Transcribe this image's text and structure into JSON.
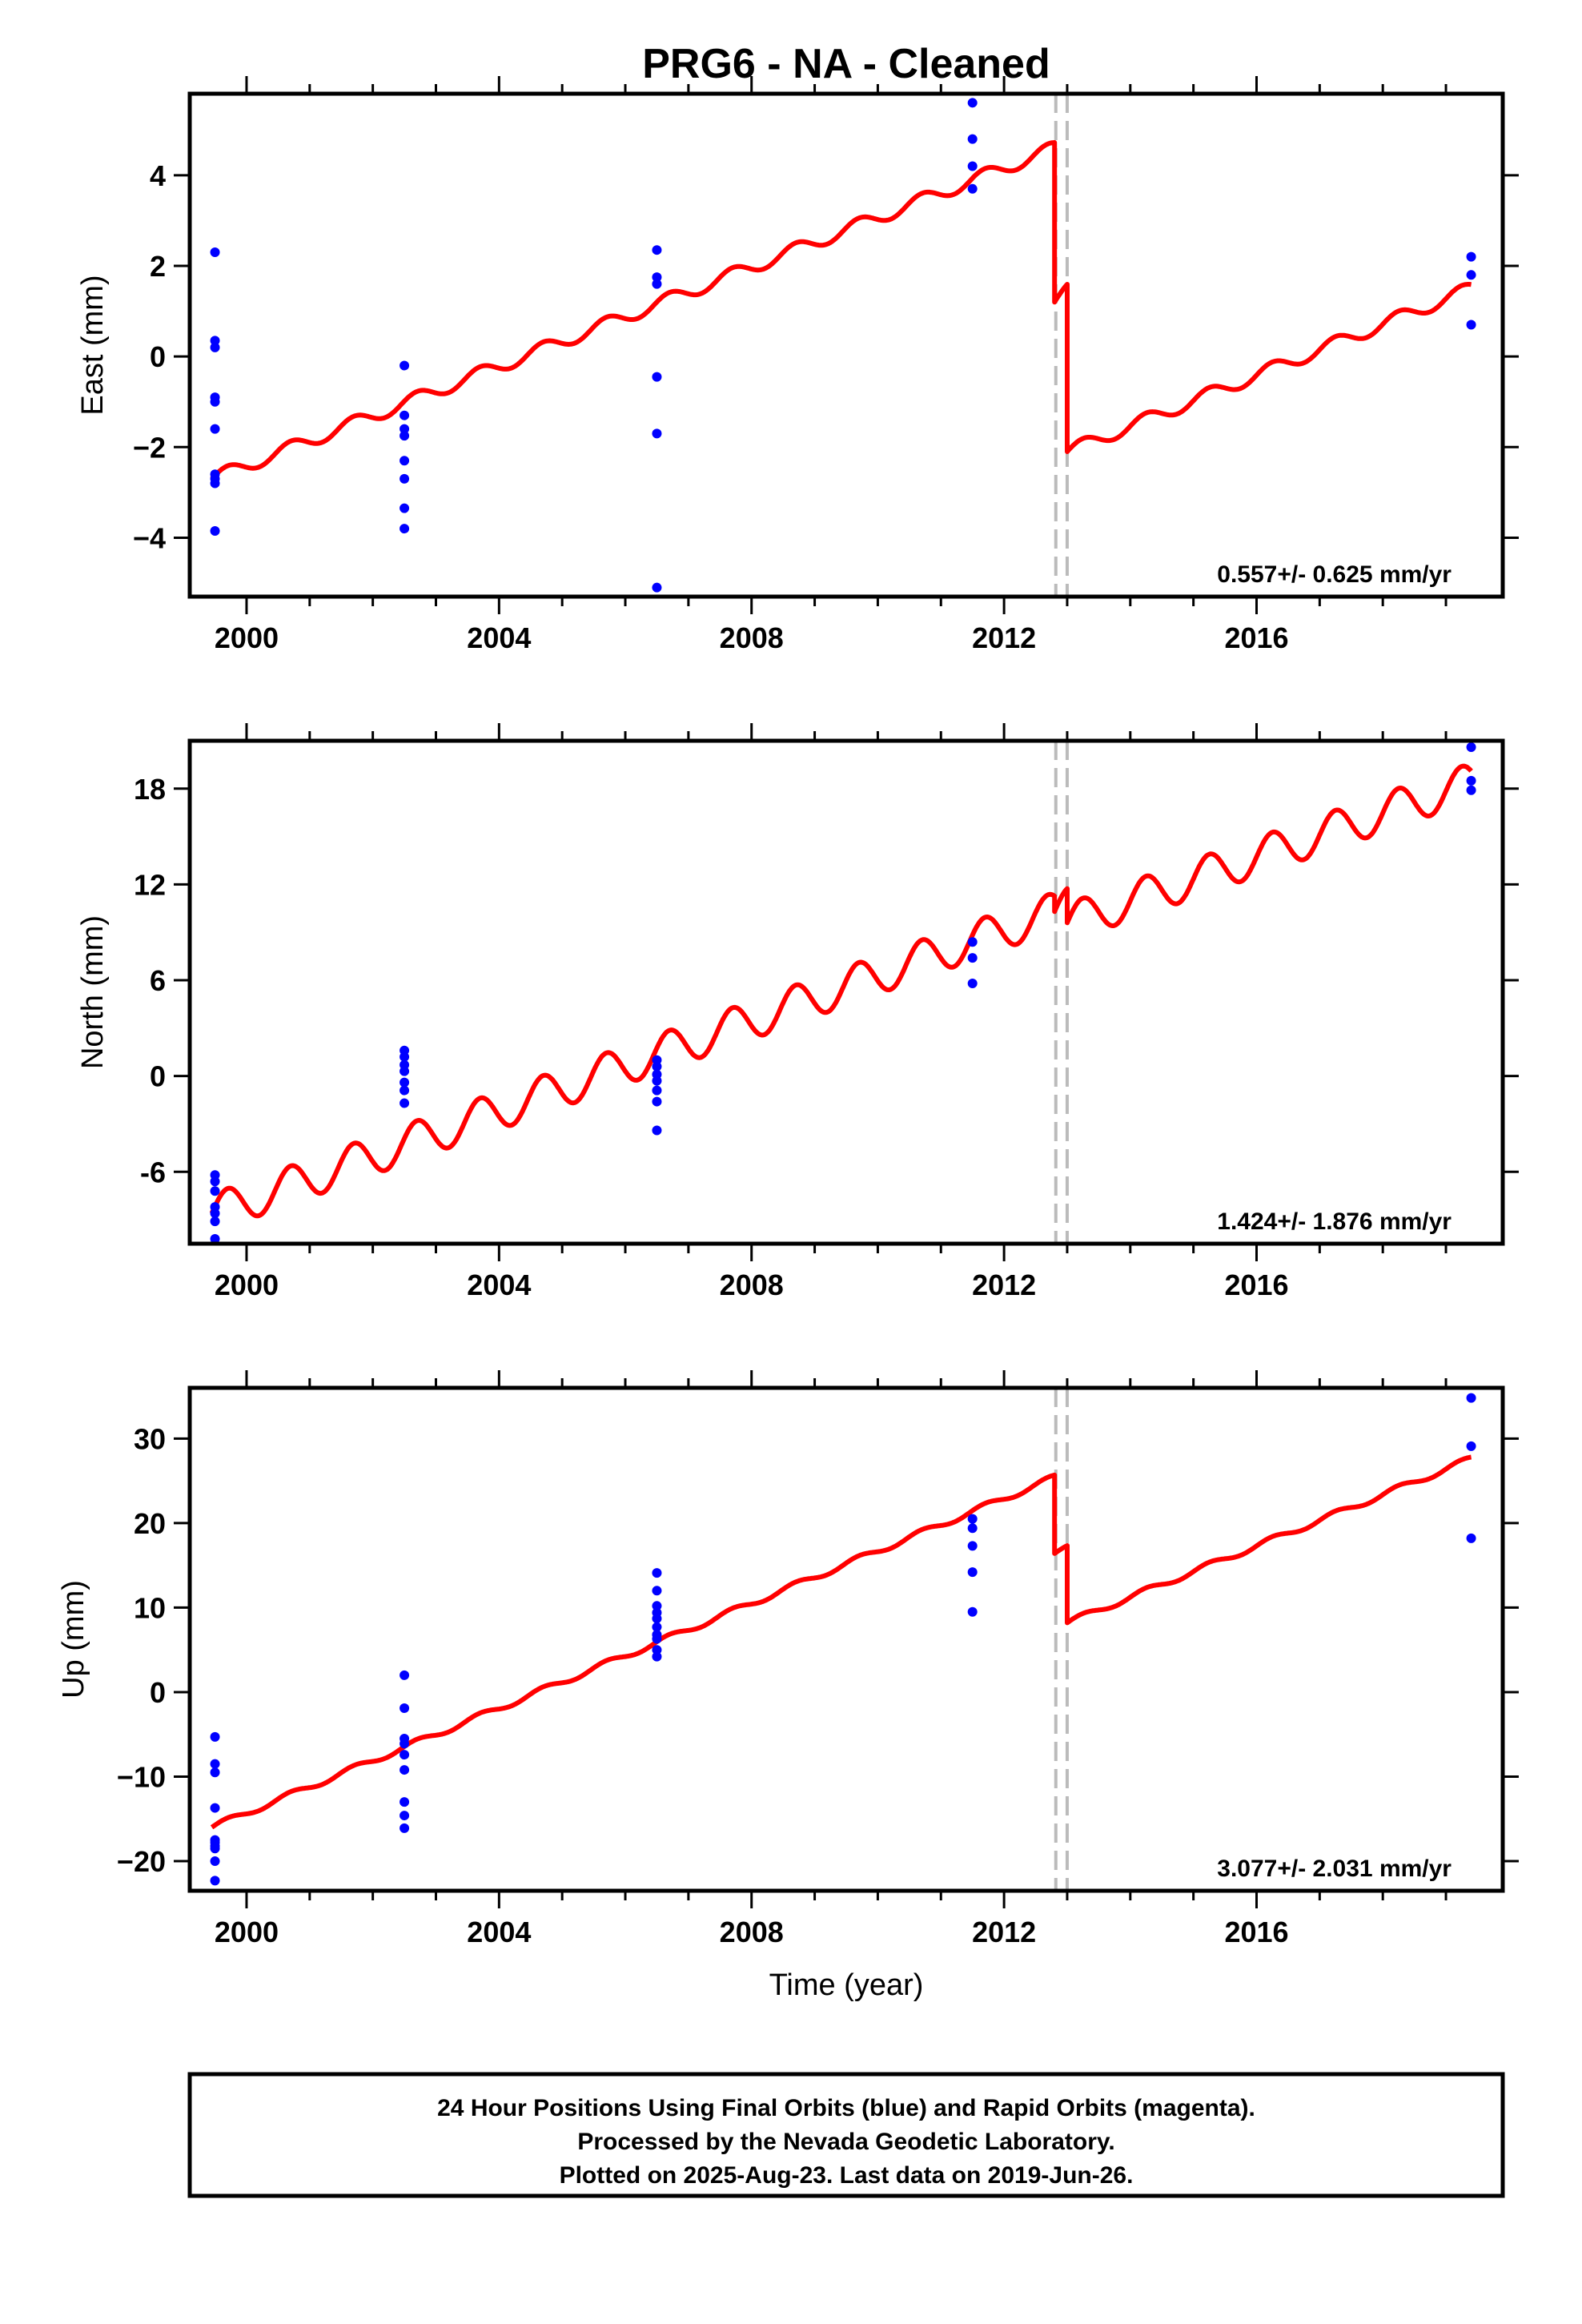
{
  "title": "PRG6  - NA - Cleaned",
  "footer": {
    "lines": [
      "24 Hour Positions Using Final Orbits (blue) and Rapid Orbits (magenta).",
      "Processed by the Nevada Geodetic Laboratory.",
      "Plotted on 2025-Aug-23. Last data on 2019-Jun-26."
    ]
  },
  "colors": {
    "observations": "#0000ff",
    "model": "#ff0000",
    "discontinuity": "#bbbbbb",
    "frame": "#000000"
  },
  "chart_data": [
    {
      "type": "scatter",
      "name": "east",
      "ylabel": "East (mm)",
      "xlabel": "",
      "xlim": [
        1999.1,
        2019.9
      ],
      "ylim": [
        -5.3,
        5.8
      ],
      "xticks": [
        2000,
        2004,
        2008,
        2012,
        2016
      ],
      "yticks": [
        -4,
        -2,
        0,
        2,
        4
      ],
      "ytick_labels": [
        "−4",
        "−2",
        "0",
        "2",
        "4"
      ],
      "rate_text": "0.557+/- 0.625 mm/yr",
      "discontinuities": [
        2012.82,
        2013.0
      ],
      "observations": {
        "x": [
          1999.5,
          1999.5,
          1999.5,
          1999.5,
          1999.5,
          1999.5,
          1999.5,
          1999.5,
          1999.5,
          1999.5,
          2002.5,
          2002.5,
          2002.5,
          2002.5,
          2002.5,
          2002.5,
          2002.5,
          2002.5,
          2006.5,
          2006.5,
          2006.5,
          2006.5,
          2006.5,
          2006.5,
          2011.5,
          2011.5,
          2011.5,
          2011.5,
          2019.4,
          2019.4,
          2019.4
        ],
        "y": [
          2.3,
          0.35,
          0.2,
          -0.9,
          -1.0,
          -1.6,
          -2.6,
          -2.8,
          -3.85,
          -2.7,
          -0.2,
          -1.3,
          -1.6,
          -1.75,
          -2.3,
          -2.7,
          -3.35,
          -3.8,
          2.35,
          1.75,
          1.6,
          -0.45,
          -1.7,
          -5.1,
          5.6,
          4.8,
          4.2,
          3.7,
          2.2,
          1.8,
          0.7
        ]
      },
      "model": {
        "segments": [
          {
            "x0": 1999.45,
            "x1": 2012.8,
            "y0": -2.7,
            "y1": 4.6
          },
          {
            "x0": 2012.8,
            "x1": 2013.0,
            "y0": 1.2,
            "y1": 1.45
          },
          {
            "x0": 2013.0,
            "x1": 2019.4,
            "y0": -2.1,
            "y1": 1.5
          }
        ],
        "seasonal_amplitude": 0.15
      }
    },
    {
      "type": "scatter",
      "name": "north",
      "ylabel": "North (mm)",
      "xlabel": "",
      "xlim": [
        1999.1,
        2019.9
      ],
      "ylim": [
        -10.5,
        21
      ],
      "xticks": [
        2000,
        2004,
        2008,
        2012,
        2016
      ],
      "yticks": [
        -6,
        0,
        6,
        12,
        18
      ],
      "ytick_labels": [
        "-6",
        "0",
        "6",
        "12",
        "18"
      ],
      "rate_text": "1.424+/- 1.876 mm/yr",
      "discontinuities": [
        2012.82,
        2013.0
      ],
      "observations": {
        "x": [
          1999.5,
          1999.5,
          1999.5,
          1999.5,
          1999.5,
          1999.5,
          1999.5,
          2002.5,
          2002.5,
          2002.5,
          2002.5,
          2002.5,
          2002.5,
          2002.5,
          2006.5,
          2006.5,
          2006.5,
          2006.5,
          2006.5,
          2006.5,
          2006.5,
          2011.5,
          2011.5,
          2011.5,
          2019.4,
          2019.4,
          2019.4
        ],
        "y": [
          -6.2,
          -6.6,
          -7.2,
          -8.2,
          -8.6,
          -9.1,
          -10.2,
          1.6,
          1.2,
          0.7,
          0.3,
          -0.4,
          -0.9,
          -1.7,
          1.0,
          0.6,
          0.1,
          -0.3,
          -0.9,
          -1.6,
          -3.4,
          8.4,
          7.4,
          5.8,
          20.6,
          18.5,
          17.9
        ]
      },
      "model": {
        "segments": [
          {
            "x0": 1999.45,
            "x1": 2012.8,
            "y0": -8.6,
            "y1": 10.3
          },
          {
            "x0": 2012.8,
            "x1": 2013.0,
            "y0": 10.3,
            "y1": 10.6
          },
          {
            "x0": 2013.0,
            "x1": 2019.4,
            "y0": 9.6,
            "y1": 18.4
          }
        ],
        "seasonal_amplitude": 1.2
      }
    },
    {
      "type": "scatter",
      "name": "up",
      "ylabel": "Up (mm)",
      "xlabel": "Time (year)",
      "xlim": [
        1999.1,
        2019.9
      ],
      "ylim": [
        -23.5,
        36
      ],
      "xticks": [
        2000,
        2004,
        2008,
        2012,
        2016
      ],
      "yticks": [
        -20,
        -10,
        0,
        10,
        20,
        30
      ],
      "ytick_labels": [
        "−20",
        "−10",
        "0",
        "10",
        "20",
        "30"
      ],
      "rate_text": "3.077+/- 2.031 mm/yr",
      "discontinuities": [
        2012.82,
        2013.0
      ],
      "observations": {
        "x": [
          1999.5,
          1999.5,
          1999.5,
          1999.5,
          1999.5,
          1999.5,
          1999.5,
          1999.5,
          1999.5,
          1999.5,
          2002.5,
          2002.5,
          2002.5,
          2002.5,
          2002.5,
          2002.5,
          2002.5,
          2002.5,
          2002.5,
          2006.5,
          2006.5,
          2006.5,
          2006.5,
          2006.5,
          2006.5,
          2006.5,
          2006.5,
          2006.5,
          2006.5,
          2011.5,
          2011.5,
          2011.5,
          2011.5,
          2011.5,
          2019.4,
          2019.4,
          2019.4
        ],
        "y": [
          -5.3,
          -8.5,
          -9.5,
          -13.7,
          -17.5,
          -18.5,
          -20.0,
          -22.3,
          -18.2,
          -17.8,
          2.0,
          -1.9,
          -5.5,
          -6.1,
          -7.4,
          -9.2,
          -13.0,
          -14.6,
          -16.1,
          14.1,
          12.0,
          10.2,
          9.4,
          8.7,
          7.7,
          6.8,
          6.3,
          5.0,
          4.2,
          20.5,
          19.4,
          17.3,
          14.2,
          9.5,
          34.8,
          29.1,
          18.2
        ]
      },
      "model": {
        "segments": [
          {
            "x0": 1999.45,
            "x1": 2012.8,
            "y0": -16.0,
            "y1": 25.4
          },
          {
            "x0": 2012.8,
            "x1": 2013.0,
            "y0": 16.4,
            "y1": 17.0
          },
          {
            "x0": 2013.0,
            "x1": 2019.4,
            "y0": 8.2,
            "y1": 27.6
          }
        ],
        "seasonal_amplitude": 0.35
      }
    }
  ]
}
